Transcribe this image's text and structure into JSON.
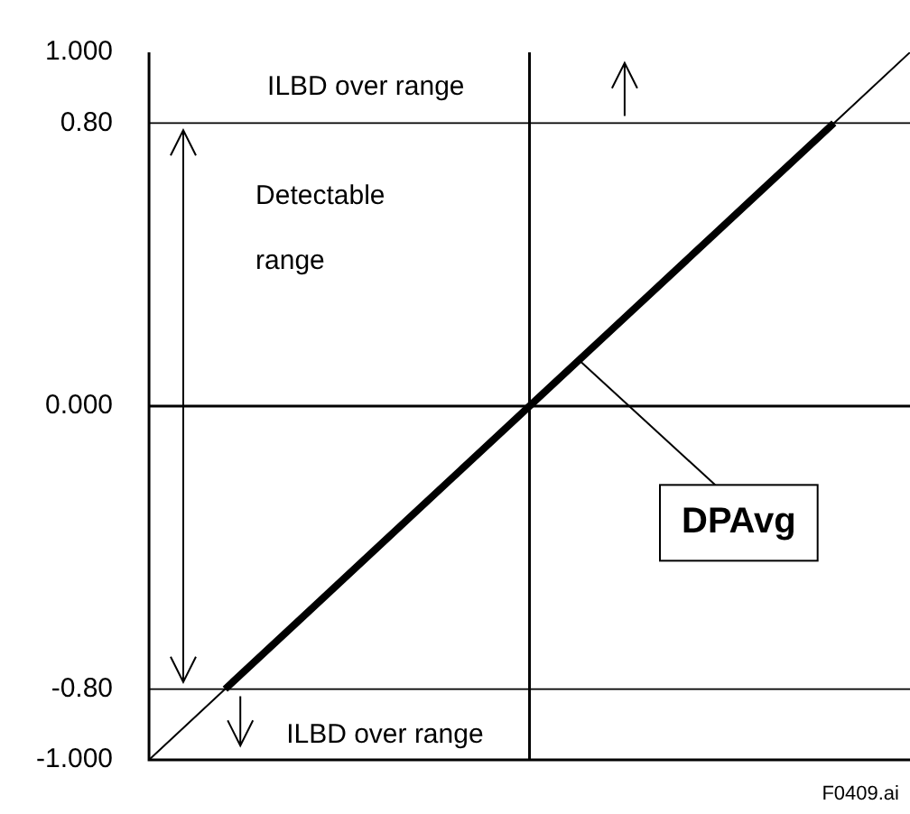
{
  "chart_data": {
    "type": "line",
    "categories": [
      null,
      null,
      null,
      null,
      null,
      null,
      null,
      null,
      null,
      null,
      null
    ],
    "ylim": [
      -1,
      1
    ],
    "yticks": [
      {
        "value": 1,
        "label": "1.000"
      },
      {
        "value": 0.8,
        "label": "0.80"
      },
      {
        "value": 0,
        "label": "0.000"
      },
      {
        "value": -0.8,
        "label": "-0.80"
      },
      {
        "value": -1,
        "label": "-1.000"
      }
    ],
    "tick_labels": "y",
    "grid": false,
    "legend": false,
    "marker": "none",
    "series": [
      {
        "color": "#000000",
        "values": [
          -1,
          -0.8,
          -0.6,
          -0.4,
          -0.2,
          0,
          0.2,
          0.4,
          0.6,
          0.8,
          1
        ]
      },
      {
        "color": "#000000",
        "values": [
          null,
          -0.8,
          -0.6,
          -0.4,
          -0.2,
          0,
          0.2,
          0.4,
          0.6,
          0.8,
          null
        ]
      }
    ],
    "ref_lines": [
      {
        "axis": "y",
        "value": 0.8
      },
      {
        "axis": "y",
        "value": -0.8
      },
      {
        "axis": "y",
        "value": 0
      }
    ],
    "annotations": [
      "ILBD over range",
      "Detectable range",
      "DPAvg",
      "ILBD over range",
      "F0409.ai"
    ]
  }
}
